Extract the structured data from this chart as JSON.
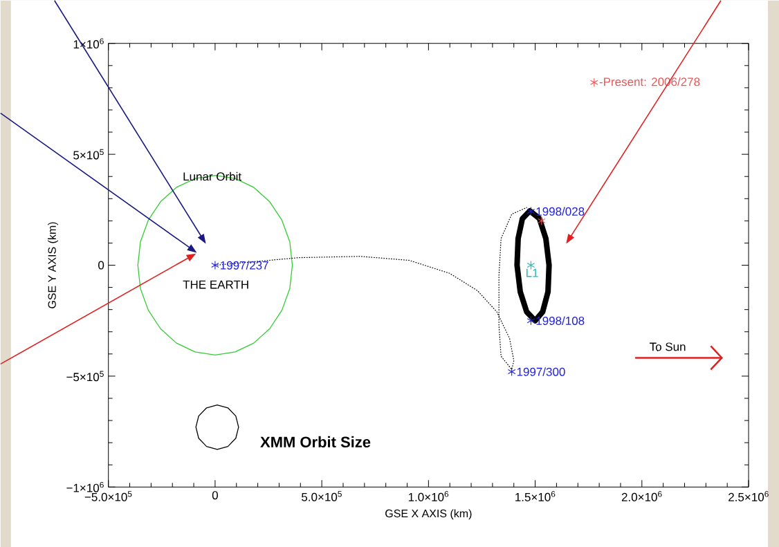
{
  "chart_data": {
    "type": "line",
    "xlabel": "GSE X AXIS (km)",
    "ylabel": "GSE Y AXIS (km)",
    "xlim": [
      -500000,
      2500000
    ],
    "ylim": [
      -1000000,
      1000000
    ],
    "xticks": [
      {
        "value": -500000,
        "label": "−5.0×10$^{5}$"
      },
      {
        "value": 0,
        "label": "0"
      },
      {
        "value": 500000,
        "label": "5.0×10$^{5}$"
      },
      {
        "value": 1000000,
        "label": "1.0×10$^{6}$"
      },
      {
        "value": 1500000,
        "label": "1.5×10$^{6}$"
      },
      {
        "value": 2000000,
        "label": "2.0×10$^{6}$"
      },
      {
        "value": 2500000,
        "label": "2.5×10$^{6}$"
      }
    ],
    "yticks": [
      {
        "value": -1000000,
        "label": "−1×10$^{6}$"
      },
      {
        "value": -500000,
        "label": "−5×10$^{5}$"
      },
      {
        "value": 0,
        "label": "0"
      },
      {
        "value": 500000,
        "label": "5×10$^{5}$"
      },
      {
        "value": 1000000,
        "label": "1×10$^{6}$"
      }
    ],
    "legend": "top right",
    "series": [
      {
        "color": "#33cc33",
        "x": [
          0,
          94000,
          181000,
          256000,
          313000,
          350000,
          362000,
          350000,
          313000,
          256000,
          181000,
          94000,
          0,
          -94000,
          -181000,
          -256000,
          -313000,
          -350000,
          -362000,
          -350000,
          -313000,
          -256000,
          -181000,
          -94000,
          0,
          94000
        ],
        "values": [
          405000,
          391000,
          351000,
          286000,
          203000,
          105000,
          0,
          -105000,
          -203000,
          -286000,
          -351000,
          -391000,
          -405000,
          -391000,
          -351000,
          -286000,
          -203000,
          -105000,
          0,
          105000,
          203000,
          286000,
          351000,
          391000,
          405000,
          391000
        ]
      },
      {
        "color": "#000000",
        "line_style": "dotted",
        "x": [
          0,
          390000,
          680000,
          910000,
          1100000,
          1230000,
          1320000,
          1380000,
          1400000,
          1390000,
          1340000,
          1330000,
          1330000,
          1340000,
          1390000,
          1460000
        ],
        "values": [
          0,
          34000,
          40000,
          22000,
          -37000,
          -115000,
          -210000,
          -330000,
          -430000,
          -470000,
          -410000,
          -270000,
          -50000,
          120000,
          230000,
          260000
        ]
      },
      {
        "color": "#000000",
        "x": [
          1475000,
          1520000,
          1550000,
          1565000,
          1560000,
          1535000,
          1500000,
          1460000,
          1430000,
          1415000,
          1420000,
          1440000,
          1475000,
          1520000
        ],
        "values": [
          245000,
          210000,
          120000,
          0,
          -120000,
          -210000,
          -250000,
          -210000,
          -120000,
          0,
          120000,
          210000,
          245000,
          210000
        ]
      },
      {
        "color": "#000000",
        "x": [
          10000,
          60000,
          97000,
          110000,
          97000,
          60000,
          10000,
          -40000,
          -77000,
          -90000,
          -77000,
          -40000,
          10000,
          60000
        ],
        "values": [
          -630000,
          -643000,
          -680000,
          -730000,
          -780000,
          -817000,
          -830000,
          -817000,
          -780000,
          -730000,
          -680000,
          -643000,
          -630000,
          -643000
        ]
      },
      {
        "type": "scatter",
        "color": "#2222dd",
        "marker": "cross",
        "x": [
          0,
          1480000,
          1480000,
          1390000
        ],
        "values": [
          0,
          243000,
          -250000,
          -480000
        ],
        "value_labels": [
          "1997/237",
          "1998/028",
          "1998/108",
          "1997/300"
        ]
      },
      {
        "type": "scatter",
        "color": "#22bbbb",
        "marker": "cross",
        "x": [
          1480000
        ],
        "values": [
          0
        ]
      },
      {
        "name": "-Present: 2006/278",
        "type": "scatter",
        "color": "#ee5555",
        "marker": "cross",
        "x": [
          1530000
        ],
        "values": [
          200000
        ]
      }
    ],
    "annotations": [
      {
        "text": "Lunar Orbit",
        "x": 0,
        "y": 405000
      },
      {
        "text": "THE EARTH",
        "x": 0,
        "y": 0
      },
      {
        "text": "XMM Orbit Size",
        "x": 110000,
        "y": -730000
      },
      {
        "text": "L1",
        "x": 1480000,
        "y": 0
      },
      "To Sun"
    ]
  }
}
